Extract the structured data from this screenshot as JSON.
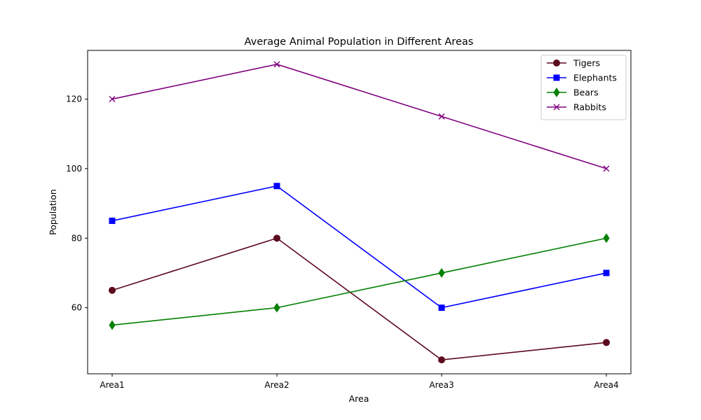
{
  "chart_data": {
    "type": "line",
    "title": "Average Animal Population in Different Areas",
    "xlabel": "Area",
    "ylabel": "Population",
    "categories": [
      "Area1",
      "Area2",
      "Area3",
      "Area4"
    ],
    "ylim": [
      41,
      134
    ],
    "yticks": [
      60,
      80,
      100,
      120
    ],
    "grid": false,
    "legend_position": "top-right",
    "series": [
      {
        "name": "Tigers",
        "values": [
          65,
          80,
          45,
          50
        ],
        "color": "#5c0a1e",
        "marker": "circle"
      },
      {
        "name": "Elephants",
        "values": [
          85,
          95,
          60,
          70
        ],
        "color": "#0000ff",
        "marker": "square"
      },
      {
        "name": "Bears",
        "values": [
          55,
          60,
          70,
          80
        ],
        "color": "#008000",
        "marker": "diamond"
      },
      {
        "name": "Rabbits",
        "values": [
          120,
          130,
          115,
          100
        ],
        "color": "#800080",
        "marker": "x"
      }
    ]
  }
}
